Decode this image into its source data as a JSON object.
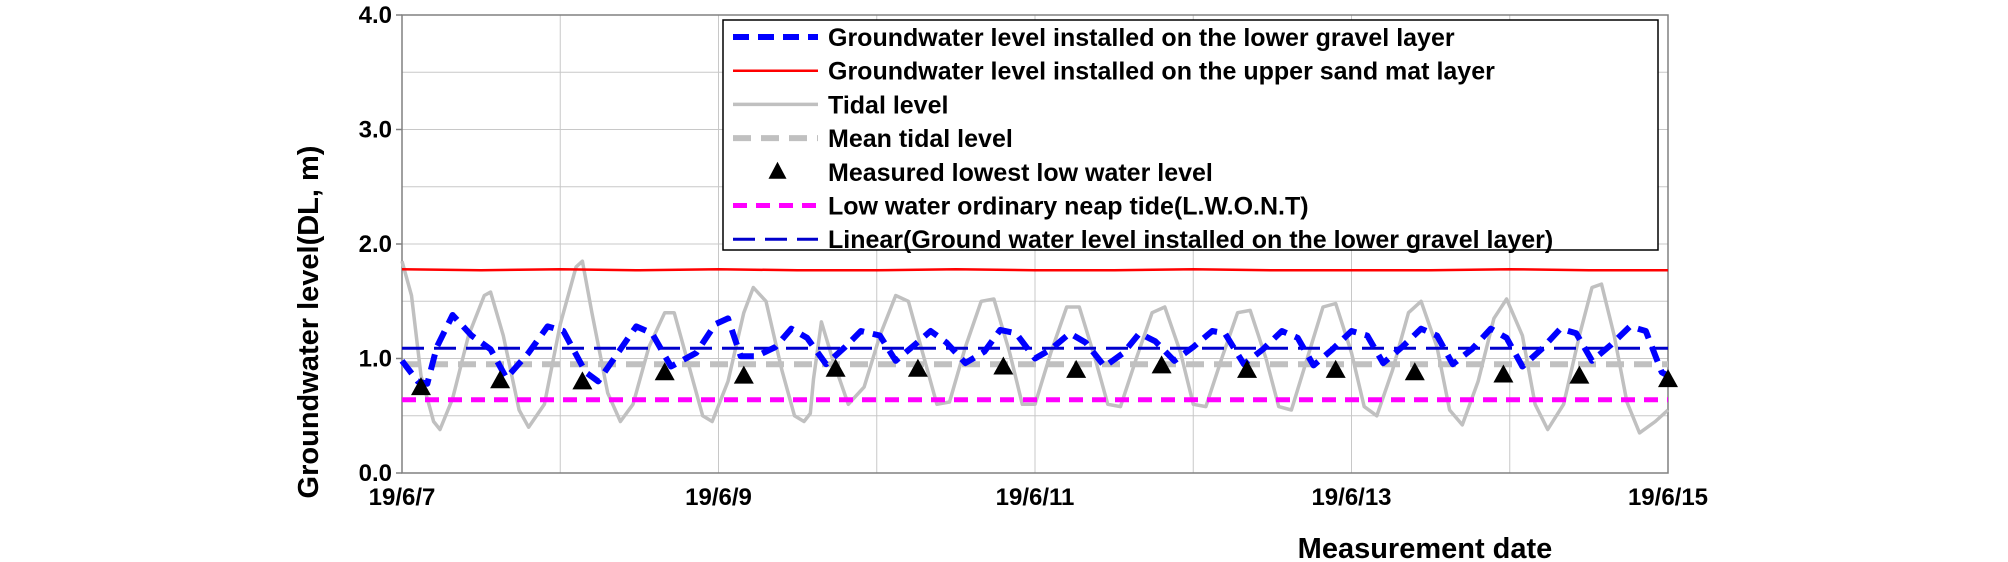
{
  "chart_data": {
    "type": "line",
    "xlabel": "Measurement date",
    "ylabel": "Groundwater level(DL, m)",
    "ylim": [
      0.0,
      4.0
    ],
    "xlim": [
      "19/6/7",
      "19/6/15"
    ],
    "x_ticks": [
      "19/6/7",
      "19/6/9",
      "19/6/11",
      "19/6/13",
      "19/6/15"
    ],
    "y_ticks": [
      "0.0",
      "1.0",
      "2.0",
      "3.0",
      "4.0"
    ],
    "grid": true,
    "legend_position": "top-right",
    "colors": {
      "lower_gravel": "#0000ff",
      "upper_sand": "#ff0000",
      "tidal": "#c0c0c0",
      "mean_tidal": "#c0c0c0",
      "lowest": "#000000",
      "lwont": "#ff00ff",
      "linear": "#0000cc"
    },
    "legend": [
      "Groundwater level installed on the lower gravel layer",
      "Groundwater level installed on the upper sand mat layer",
      "Tidal level",
      "Mean tidal level",
      "Measured lowest low water level",
      "Low water ordinary neap tide(L.W.O.N.T)",
      "Linear(Ground water level installed on the lower gravel layer)"
    ],
    "series": [
      {
        "name": "Groundwater level installed on the lower gravel layer",
        "style": "dashed",
        "points": [
          [
            0.0,
            0.98
          ],
          [
            0.1,
            0.8
          ],
          [
            0.16,
            0.78
          ],
          [
            0.22,
            1.1
          ],
          [
            0.32,
            1.38
          ],
          [
            0.44,
            1.2
          ],
          [
            0.56,
            1.08
          ],
          [
            0.66,
            0.83
          ],
          [
            0.8,
            1.05
          ],
          [
            0.92,
            1.28
          ],
          [
            1.02,
            1.24
          ],
          [
            1.16,
            0.88
          ],
          [
            1.24,
            0.8
          ],
          [
            1.38,
            1.08
          ],
          [
            1.48,
            1.28
          ],
          [
            1.58,
            1.22
          ],
          [
            1.7,
            0.93
          ],
          [
            1.86,
            1.05
          ],
          [
            1.98,
            1.3
          ],
          [
            2.06,
            1.35
          ],
          [
            2.14,
            1.02
          ],
          [
            2.24,
            1.02
          ],
          [
            2.36,
            1.1
          ],
          [
            2.46,
            1.26
          ],
          [
            2.56,
            1.18
          ],
          [
            2.68,
            0.95
          ],
          [
            2.8,
            1.1
          ],
          [
            2.9,
            1.24
          ],
          [
            3.02,
            1.2
          ],
          [
            3.12,
            0.98
          ],
          [
            3.24,
            1.12
          ],
          [
            3.34,
            1.24
          ],
          [
            3.44,
            1.14
          ],
          [
            3.56,
            0.96
          ],
          [
            3.68,
            1.06
          ],
          [
            3.78,
            1.25
          ],
          [
            3.88,
            1.22
          ],
          [
            4.0,
            1.0
          ],
          [
            4.1,
            1.08
          ],
          [
            4.22,
            1.22
          ],
          [
            4.32,
            1.14
          ],
          [
            4.44,
            0.93
          ],
          [
            4.56,
            1.05
          ],
          [
            4.66,
            1.22
          ],
          [
            4.76,
            1.15
          ],
          [
            4.88,
            0.98
          ],
          [
            5.0,
            1.1
          ],
          [
            5.12,
            1.24
          ],
          [
            5.2,
            1.22
          ],
          [
            5.32,
            0.95
          ],
          [
            5.44,
            1.08
          ],
          [
            5.56,
            1.24
          ],
          [
            5.66,
            1.18
          ],
          [
            5.76,
            0.94
          ],
          [
            5.88,
            1.08
          ],
          [
            6.0,
            1.24
          ],
          [
            6.1,
            1.2
          ],
          [
            6.2,
            0.96
          ],
          [
            6.32,
            1.1
          ],
          [
            6.44,
            1.26
          ],
          [
            6.54,
            1.2
          ],
          [
            6.64,
            0.95
          ],
          [
            6.76,
            1.08
          ],
          [
            6.88,
            1.26
          ],
          [
            6.98,
            1.18
          ],
          [
            7.08,
            0.93
          ],
          [
            7.2,
            1.08
          ],
          [
            7.32,
            1.26
          ],
          [
            7.42,
            1.22
          ],
          [
            7.52,
            0.98
          ],
          [
            7.64,
            1.12
          ],
          [
            7.76,
            1.28
          ],
          [
            7.86,
            1.24
          ],
          [
            7.96,
            0.88
          ],
          [
            8.0,
            0.85
          ]
        ]
      },
      {
        "name": "Groundwater level installed on the upper sand mat layer",
        "style": "solid",
        "points": [
          [
            0.0,
            1.78
          ],
          [
            0.5,
            1.77
          ],
          [
            1.0,
            1.78
          ],
          [
            1.5,
            1.77
          ],
          [
            2.0,
            1.78
          ],
          [
            2.5,
            1.77
          ],
          [
            3.0,
            1.77
          ],
          [
            3.5,
            1.78
          ],
          [
            4.0,
            1.77
          ],
          [
            4.5,
            1.77
          ],
          [
            5.0,
            1.78
          ],
          [
            5.5,
            1.77
          ],
          [
            6.0,
            1.77
          ],
          [
            6.5,
            1.77
          ],
          [
            7.0,
            1.78
          ],
          [
            7.5,
            1.77
          ],
          [
            8.0,
            1.77
          ]
        ]
      },
      {
        "name": "Tidal level",
        "style": "solid",
        "points": [
          [
            0.0,
            1.85
          ],
          [
            0.06,
            1.55
          ],
          [
            0.12,
            0.85
          ],
          [
            0.2,
            0.45
          ],
          [
            0.24,
            0.38
          ],
          [
            0.32,
            0.65
          ],
          [
            0.42,
            1.2
          ],
          [
            0.52,
            1.55
          ],
          [
            0.56,
            1.58
          ],
          [
            0.64,
            1.2
          ],
          [
            0.74,
            0.55
          ],
          [
            0.8,
            0.4
          ],
          [
            0.9,
            0.6
          ],
          [
            1.0,
            1.3
          ],
          [
            1.1,
            1.8
          ],
          [
            1.14,
            1.85
          ],
          [
            1.2,
            1.4
          ],
          [
            1.3,
            0.7
          ],
          [
            1.38,
            0.45
          ],
          [
            1.46,
            0.6
          ],
          [
            1.56,
            1.1
          ],
          [
            1.66,
            1.4
          ],
          [
            1.72,
            1.4
          ],
          [
            1.82,
            0.9
          ],
          [
            1.9,
            0.5
          ],
          [
            1.96,
            0.45
          ],
          [
            2.06,
            0.8
          ],
          [
            2.16,
            1.4
          ],
          [
            2.22,
            1.62
          ],
          [
            2.3,
            1.5
          ],
          [
            2.4,
            0.9
          ],
          [
            2.48,
            0.5
          ],
          [
            2.54,
            0.45
          ],
          [
            2.58,
            0.52
          ],
          [
            2.6,
            0.82
          ],
          [
            2.65,
            1.32
          ],
          [
            2.72,
            1.0
          ],
          [
            2.82,
            0.6
          ],
          [
            2.92,
            0.75
          ],
          [
            3.02,
            1.2
          ],
          [
            3.12,
            1.55
          ],
          [
            3.2,
            1.5
          ],
          [
            3.3,
            1.0
          ],
          [
            3.38,
            0.6
          ],
          [
            3.46,
            0.62
          ],
          [
            3.56,
            1.1
          ],
          [
            3.66,
            1.5
          ],
          [
            3.74,
            1.52
          ],
          [
            3.84,
            1.05
          ],
          [
            3.92,
            0.6
          ],
          [
            4.0,
            0.6
          ],
          [
            4.1,
            1.05
          ],
          [
            4.2,
            1.45
          ],
          [
            4.28,
            1.45
          ],
          [
            4.38,
            1.0
          ],
          [
            4.46,
            0.6
          ],
          [
            4.54,
            0.58
          ],
          [
            4.64,
            1.0
          ],
          [
            4.74,
            1.4
          ],
          [
            4.82,
            1.45
          ],
          [
            4.92,
            1.05
          ],
          [
            5.0,
            0.6
          ],
          [
            5.08,
            0.58
          ],
          [
            5.18,
            1.0
          ],
          [
            5.28,
            1.4
          ],
          [
            5.36,
            1.42
          ],
          [
            5.46,
            1.0
          ],
          [
            5.54,
            0.58
          ],
          [
            5.62,
            0.55
          ],
          [
            5.72,
            1.0
          ],
          [
            5.82,
            1.45
          ],
          [
            5.9,
            1.48
          ],
          [
            6.0,
            1.05
          ],
          [
            6.08,
            0.58
          ],
          [
            6.16,
            0.5
          ],
          [
            6.26,
            0.9
          ],
          [
            6.36,
            1.4
          ],
          [
            6.44,
            1.5
          ],
          [
            6.54,
            1.1
          ],
          [
            6.62,
            0.55
          ],
          [
            6.7,
            0.42
          ],
          [
            6.8,
            0.8
          ],
          [
            6.9,
            1.35
          ],
          [
            6.98,
            1.52
          ],
          [
            7.08,
            1.2
          ],
          [
            7.16,
            0.6
          ],
          [
            7.24,
            0.38
          ],
          [
            7.34,
            0.6
          ],
          [
            7.44,
            1.2
          ],
          [
            7.52,
            1.62
          ],
          [
            7.58,
            1.65
          ],
          [
            7.66,
            1.2
          ],
          [
            7.74,
            0.62
          ],
          [
            7.82,
            0.35
          ],
          [
            7.92,
            0.45
          ],
          [
            8.0,
            0.55
          ]
        ]
      },
      {
        "name": "Mean tidal level",
        "style": "dashed",
        "points": [
          [
            0.0,
            0.95
          ],
          [
            8.0,
            0.95
          ]
        ]
      },
      {
        "name": "Measured lowest low water level",
        "style": "markers",
        "points": [
          [
            0.12,
            0.74
          ],
          [
            0.62,
            0.8
          ],
          [
            1.14,
            0.79
          ],
          [
            1.66,
            0.87
          ],
          [
            2.16,
            0.84
          ],
          [
            2.74,
            0.9
          ],
          [
            3.26,
            0.9
          ],
          [
            3.8,
            0.92
          ],
          [
            4.26,
            0.89
          ],
          [
            4.8,
            0.93
          ],
          [
            5.34,
            0.89
          ],
          [
            5.9,
            0.89
          ],
          [
            6.4,
            0.87
          ],
          [
            6.96,
            0.85
          ],
          [
            7.44,
            0.84
          ],
          [
            8.0,
            0.81
          ]
        ]
      },
      {
        "name": "Low water ordinary neap tide(L.W.O.N.T)",
        "style": "dashed",
        "points": [
          [
            0.0,
            0.64
          ],
          [
            8.0,
            0.64
          ]
        ]
      },
      {
        "name": "Linear(Ground water level installed on the lower gravel layer)",
        "style": "dashed",
        "points": [
          [
            0.0,
            1.09
          ],
          [
            8.0,
            1.09
          ]
        ]
      }
    ]
  }
}
